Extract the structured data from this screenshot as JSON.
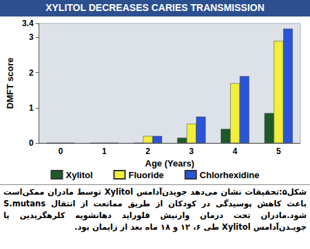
{
  "chart_data": {
    "type": "bar",
    "title": "XYLITOL DECREASES CARIES TRANSMISSION",
    "x_label": "Age (Years)",
    "y_label": "DMFT score",
    "categories": [
      "0",
      "1",
      "2",
      "3",
      "4",
      "5"
    ],
    "series": [
      {
        "name": "Xylitol",
        "color": "#1d5a2a",
        "values": [
          0,
          0,
          0,
          0.15,
          0.4,
          0.85
        ]
      },
      {
        "name": "Fluoride",
        "color": "#f2ee3c",
        "values": [
          0,
          0,
          0.2,
          0.55,
          1.7,
          2.9
        ]
      },
      {
        "name": "Chlorhexidine",
        "color": "#2a55d6",
        "values": [
          0,
          0,
          0.2,
          0.75,
          1.9,
          3.25
        ]
      }
    ],
    "ylim": [
      0,
      3.4
    ],
    "yticks": [
      0,
      1,
      2,
      3
    ],
    "grid": false,
    "legend": "bottom",
    "caption": "شکل۵:تحقیقات نشان می‌دهد جویدن‌آدامس Xylitol توسط مادران ممکن‌است باعث کاهش پوسیدگی در کودکان از طریق ممانعت از انتقال S.mutans شود.مادران تحت درمان وارنیش فلوراید دهانشویه کلرهگزیدین یا جویـدن‌آدامس Xylitol طی ۶، ۱۲ و ۱۸ ماه بعد از زایمان بود."
  }
}
